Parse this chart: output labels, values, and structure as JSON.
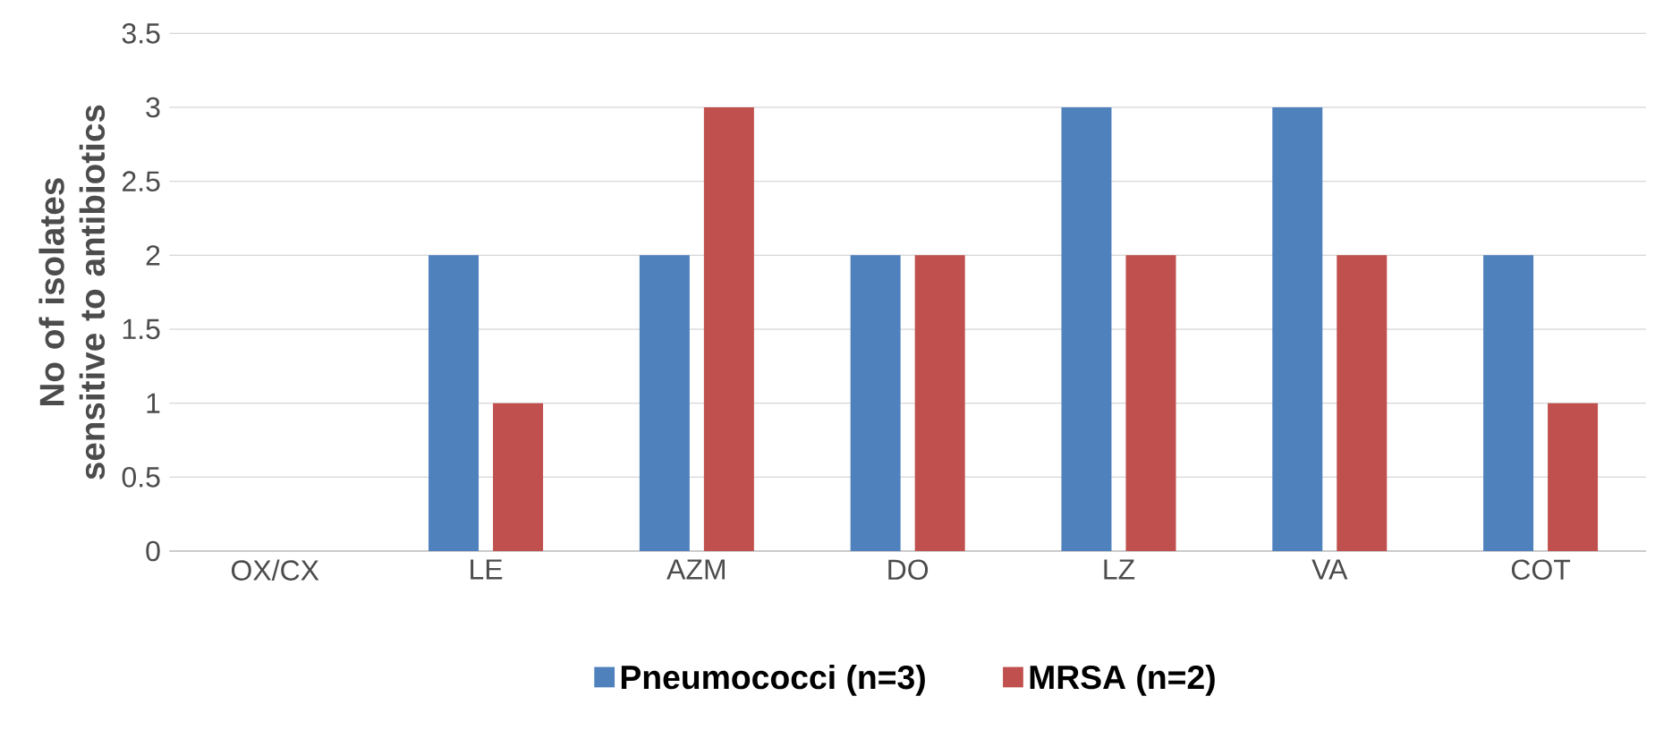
{
  "chart_data": {
    "type": "bar",
    "ylabel": "No of isolates sensitive to antibiotics",
    "categories": [
      "OX/CX",
      "LE",
      "AZM",
      "DO",
      "LZ",
      "VA",
      "COT"
    ],
    "series": [
      {
        "name": "Pneumococci (n=3)",
        "color": "#4f81bd",
        "values": [
          0,
          2,
          2,
          2,
          3,
          3,
          2
        ]
      },
      {
        "name": "MRSA (n=2)",
        "color": "#c0504d",
        "values": [
          0,
          1,
          3,
          2,
          2,
          2,
          1
        ]
      }
    ],
    "ylim": [
      0,
      3.5
    ],
    "yticks": [
      0,
      0.5,
      1,
      1.5,
      2,
      2.5,
      3,
      3.5
    ],
    "grid": "y",
    "legend": "bottom"
  }
}
